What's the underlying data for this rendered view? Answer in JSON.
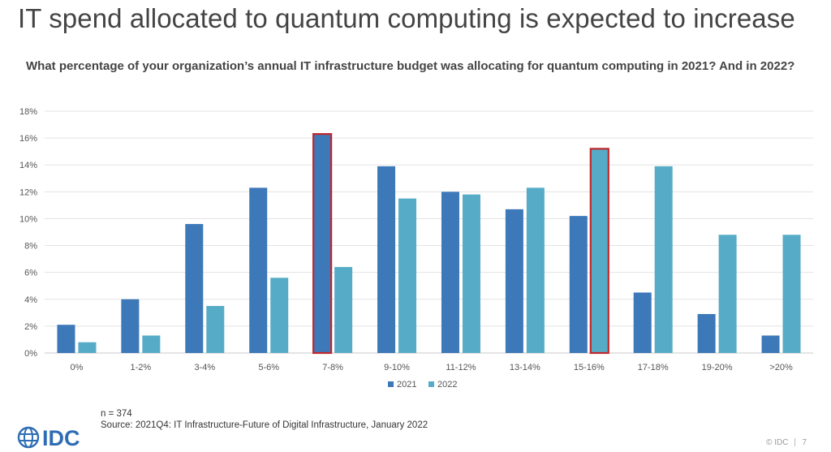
{
  "title": "IT spend allocated to quantum computing is expected to increase",
  "question": "What percentage of your organization’s annual IT infrastructure budget was allocating for quantum computing in 2021? And in 2022?",
  "chart_data": {
    "type": "bar",
    "categories": [
      "0%",
      "1-2%",
      "3-4%",
      "5-6%",
      "7-8%",
      "9-10%",
      "11-12%",
      "13-14%",
      "15-16%",
      "17-18%",
      "19-20%",
      ">20%"
    ],
    "series": [
      {
        "name": "2021",
        "color": "#3d78b8",
        "values": [
          2.1,
          4.0,
          9.6,
          12.3,
          16.3,
          13.9,
          12.0,
          10.7,
          10.2,
          4.5,
          2.9,
          1.3
        ]
      },
      {
        "name": "2022",
        "color": "#56acc6",
        "values": [
          0.8,
          1.3,
          3.5,
          5.6,
          6.4,
          11.5,
          11.8,
          12.3,
          15.2,
          13.9,
          8.8,
          8.8
        ]
      }
    ],
    "highlighted": [
      {
        "series": "2021",
        "category": "7-8%"
      },
      {
        "series": "2022",
        "category": "15-16%"
      }
    ],
    "highlight_color": "#c0282d",
    "ylim": [
      0,
      18
    ],
    "yticks": [
      "0%",
      "2%",
      "4%",
      "6%",
      "8%",
      "10%",
      "12%",
      "14%",
      "16%",
      "18%"
    ],
    "grid": true,
    "legend_position": "bottom"
  },
  "footer": {
    "n": "n = 374",
    "source": "Source: 2021Q4: IT Infrastructure-Future of  Digital Infrastructure, January 2022"
  },
  "logo": {
    "text": "IDC",
    "color": "#2e6db4"
  },
  "copyright": "© IDC",
  "page_number": "7"
}
